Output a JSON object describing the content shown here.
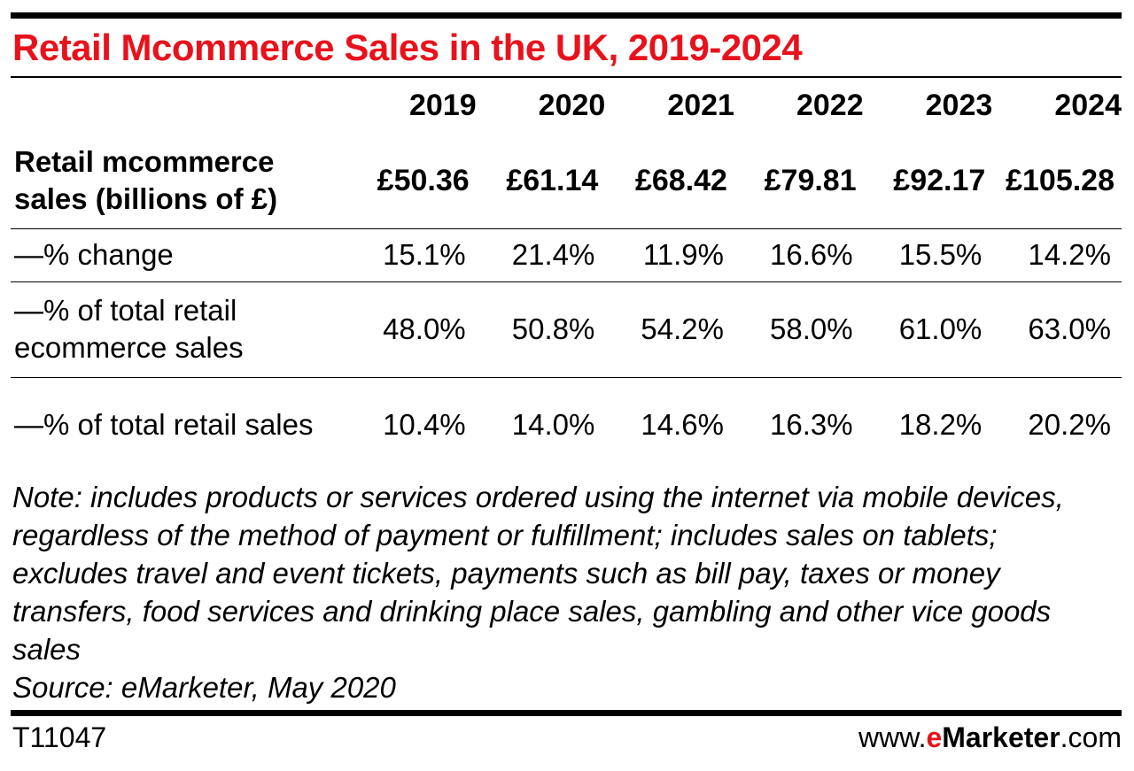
{
  "title": "Retail Mcommerce Sales in the UK, 2019-2024",
  "chart_data": {
    "type": "table",
    "columns": [
      "2019",
      "2020",
      "2021",
      "2022",
      "2023",
      "2024"
    ],
    "rows": [
      {
        "label": "Retail mcommerce sales (billions of £)",
        "values": [
          "£50.36",
          "£61.14",
          "£68.42",
          "£79.81",
          "£92.17",
          "£105.28"
        ]
      },
      {
        "label": "—% change",
        "values": [
          "15.1%",
          "21.4%",
          "11.9%",
          "16.6%",
          "15.5%",
          "14.2%"
        ]
      },
      {
        "label": "—% of total retail ecommerce sales",
        "values": [
          "48.0%",
          "50.8%",
          "54.2%",
          "58.0%",
          "61.0%",
          "63.0%"
        ]
      },
      {
        "label": "—% of total retail sales",
        "values": [
          "10.4%",
          "14.0%",
          "14.6%",
          "16.3%",
          "18.2%",
          "20.2%"
        ]
      }
    ]
  },
  "note": "Note: includes products or services ordered using the internet via mobile devices, regardless of the method of payment or fulfillment; includes sales on tablets; excludes travel and event tickets, payments such as bill pay, taxes or money transfers, food services and drinking place sales, gambling and other vice goods sales",
  "source": "Source: eMarketer, May 2020",
  "footer": {
    "code": "T11047",
    "brand_prefix": "www.",
    "brand_e": "e",
    "brand_name": "Marketer",
    "brand_suffix": ".com"
  },
  "colors": {
    "accent": "#e8121c",
    "text": "#000000"
  }
}
